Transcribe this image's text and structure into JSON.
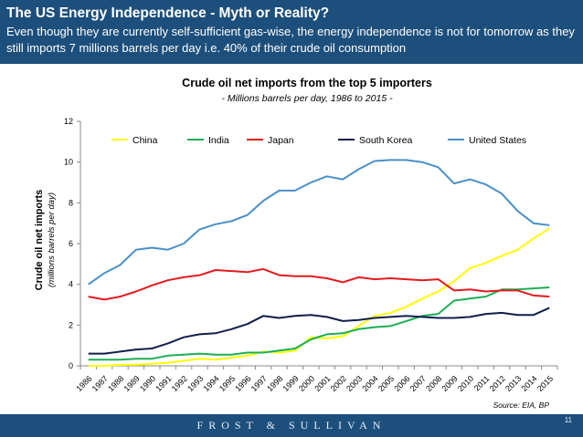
{
  "header": {
    "title": "The US Energy Independence - Myth or Reality?",
    "subtitle": "Even though they are currently self-sufficient gas-wise, the energy independence is not for tomorrow as they still imports 7 millions barrels per day i.e. 40% of their crude oil consumption"
  },
  "footer": {
    "brand": "FROST & SULLIVAN",
    "page_number": "11"
  },
  "chart_data": {
    "type": "line",
    "title": "Crude oil net imports from the top 5 importers",
    "subtitle": "- Millions barrels per day, 1986 to 2015 -",
    "ylabel": "Crude oil net imports",
    "ylabel_sub": "(millions barrels per day)",
    "ylim": [
      0,
      12
    ],
    "yticks": [
      0,
      2,
      4,
      6,
      8,
      10,
      12
    ],
    "grid": false,
    "legend_position": "top",
    "source": "Source: EIA, BP",
    "x": [
      "1986",
      "1987",
      "1988",
      "1989",
      "1990",
      "1991",
      "1992",
      "1993",
      "1994",
      "1995",
      "1996",
      "1997",
      "1998",
      "1999",
      "2000",
      "2001",
      "2002",
      "2003",
      "2004",
      "2005",
      "2006",
      "2007",
      "2008",
      "2009",
      "2010",
      "2011",
      "2012",
      "2013",
      "2014",
      "2015"
    ],
    "series": [
      {
        "name": "China",
        "color": "#ffff00",
        "values": [
          0.0,
          0.0,
          0.05,
          0.05,
          0.1,
          0.15,
          0.25,
          0.35,
          0.3,
          0.4,
          0.5,
          0.7,
          0.65,
          0.75,
          1.4,
          1.35,
          1.45,
          1.95,
          2.45,
          2.6,
          2.9,
          3.3,
          3.65,
          4.15,
          4.8,
          5.05,
          5.4,
          5.7,
          6.25,
          6.75
        ]
      },
      {
        "name": "India",
        "color": "#1aaf54",
        "values": [
          0.3,
          0.3,
          0.3,
          0.35,
          0.35,
          0.5,
          0.55,
          0.6,
          0.55,
          0.55,
          0.65,
          0.65,
          0.75,
          0.85,
          1.3,
          1.55,
          1.6,
          1.8,
          1.9,
          1.95,
          2.2,
          2.45,
          2.55,
          3.2,
          3.3,
          3.4,
          3.75,
          3.75,
          3.8,
          3.85
        ]
      },
      {
        "name": "Japan",
        "color": "#e31a1c",
        "values": [
          3.4,
          3.25,
          3.4,
          3.65,
          3.95,
          4.2,
          4.35,
          4.45,
          4.7,
          4.65,
          4.6,
          4.75,
          4.45,
          4.4,
          4.4,
          4.3,
          4.1,
          4.35,
          4.25,
          4.3,
          4.25,
          4.2,
          4.25,
          3.7,
          3.75,
          3.65,
          3.7,
          3.7,
          3.45,
          3.4
        ]
      },
      {
        "name": "South Korea",
        "color": "#0f1f4c",
        "values": [
          0.6,
          0.6,
          0.7,
          0.8,
          0.85,
          1.1,
          1.4,
          1.55,
          1.6,
          1.8,
          2.05,
          2.45,
          2.35,
          2.45,
          2.5,
          2.4,
          2.2,
          2.25,
          2.35,
          2.4,
          2.45,
          2.4,
          2.35,
          2.35,
          2.4,
          2.55,
          2.6,
          2.5,
          2.5,
          2.85
        ]
      },
      {
        "name": "United States",
        "color": "#4a90c9",
        "values": [
          4.0,
          4.55,
          4.95,
          5.7,
          5.8,
          5.7,
          6.0,
          6.7,
          6.95,
          7.1,
          7.4,
          8.1,
          8.6,
          8.6,
          9.0,
          9.3,
          9.15,
          9.65,
          10.05,
          10.1,
          10.1,
          10.0,
          9.75,
          8.95,
          9.15,
          8.9,
          8.45,
          7.6,
          7.0,
          6.9
        ]
      }
    ]
  }
}
